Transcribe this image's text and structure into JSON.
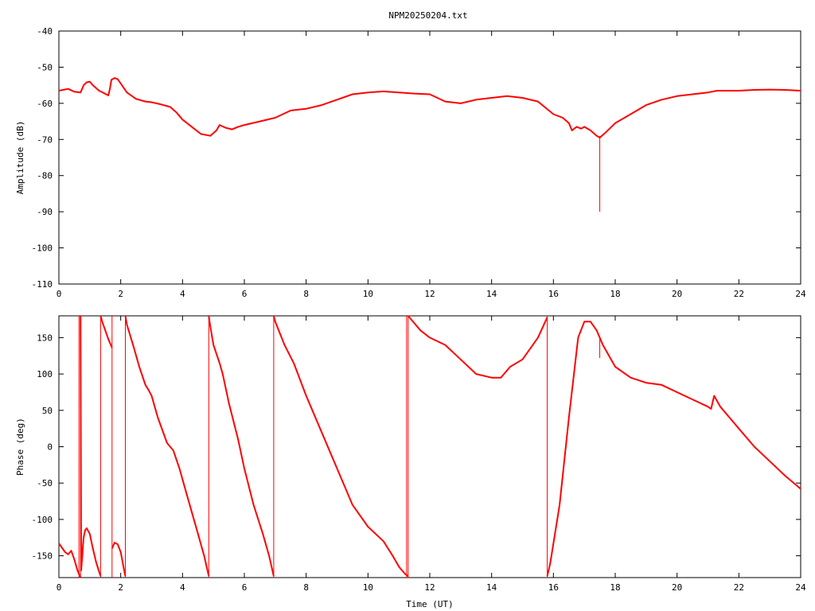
{
  "title": "NPM20250204.txt",
  "chart_data": [
    {
      "type": "line",
      "ylabel": "Amplitude (dB)",
      "xlabel": "",
      "xlim": [
        0,
        24
      ],
      "ylim": [
        -110,
        -40
      ],
      "xticks": [
        0,
        2,
        4,
        6,
        8,
        10,
        12,
        14,
        16,
        18,
        20,
        22,
        24
      ],
      "xtick_labels": [
        "0",
        "2",
        "4",
        "6",
        "8",
        "10",
        "12",
        "14",
        "16",
        "18",
        "20",
        "22",
        "24"
      ],
      "yticks": [
        -110,
        -100,
        -90,
        -80,
        -70,
        -60,
        -50,
        -40
      ],
      "ytick_labels": [
        "-110",
        "-100",
        "-90",
        "-80",
        "-70",
        "-60",
        "-50",
        "-40"
      ],
      "color": "#ff0000",
      "series": [
        {
          "x": [
            0,
            0.3,
            0.5,
            0.7,
            0.8,
            0.9,
            1.0,
            1.1,
            1.3,
            1.6,
            1.65,
            1.7,
            1.8,
            1.9,
            2.0,
            2.2,
            2.5,
            2.8,
            3.0,
            3.3,
            3.6,
            3.8,
            4.0,
            4.3,
            4.6,
            4.9,
            5.1,
            5.2,
            5.4,
            5.6,
            5.8,
            6.0,
            6.5,
            7.0,
            7.5,
            8.0,
            8.5,
            9.0,
            9.5,
            10.0,
            10.5,
            11.0,
            11.5,
            12.0,
            12.5,
            13.0,
            13.5,
            14.0,
            14.5,
            15.0,
            15.5,
            16.0,
            16.3,
            16.5,
            16.6,
            16.75,
            16.9,
            17.0,
            17.2,
            17.4,
            17.5,
            17.7,
            18.0,
            18.5,
            19.0,
            19.5,
            20.0,
            20.5,
            21.0,
            21.3,
            21.5,
            22.0,
            22.5,
            23.0,
            23.5,
            24.0
          ],
          "y": [
            -56.5,
            -56.0,
            -56.8,
            -57.0,
            -55.0,
            -54.2,
            -54.0,
            -55.0,
            -56.5,
            -57.8,
            -56.0,
            -53.5,
            -53.0,
            -53.3,
            -54.5,
            -57.0,
            -58.8,
            -59.5,
            -59.7,
            -60.3,
            -61.0,
            -62.5,
            -64.5,
            -66.5,
            -68.5,
            -69.0,
            -67.5,
            -66.0,
            -66.8,
            -67.2,
            -66.5,
            -66.0,
            -65.0,
            -64.0,
            -62.0,
            -61.5,
            -60.5,
            -59.0,
            -57.5,
            -57.0,
            -56.7,
            -57.0,
            -57.3,
            -57.5,
            -59.5,
            -60.0,
            -59.0,
            -58.5,
            -58.0,
            -58.5,
            -59.5,
            -63.0,
            -64.0,
            -65.5,
            -67.5,
            -66.5,
            -67.0,
            -66.5,
            -67.5,
            -69.0,
            -69.5,
            -68.0,
            -65.5,
            -63.0,
            -60.5,
            -59.0,
            -58.0,
            -57.5,
            -57.0,
            -56.5,
            -56.5,
            -56.5,
            -56.3,
            -56.2,
            -56.3,
            -56.5
          ]
        }
      ],
      "spikes": [
        {
          "x": 17.5,
          "y_from": -69.0,
          "y_to": -90.0
        }
      ]
    },
    {
      "type": "line",
      "ylabel": "Phase (deg)",
      "xlabel": "Time (UT)",
      "xlim": [
        0,
        24
      ],
      "ylim": [
        -180,
        180
      ],
      "xticks": [
        0,
        2,
        4,
        6,
        8,
        10,
        12,
        14,
        16,
        18,
        20,
        22,
        24
      ],
      "xtick_labels": [
        "0",
        "2",
        "4",
        "6",
        "8",
        "10",
        "12",
        "14",
        "16",
        "18",
        "20",
        "22",
        "24"
      ],
      "yticks": [
        -150,
        -100,
        -50,
        0,
        50,
        100,
        150
      ],
      "ytick_labels": [
        "-150",
        "-100",
        "-50",
        "0",
        "50",
        "100",
        "150"
      ],
      "color": "#ff0000",
      "segments": [
        {
          "x": [
            0,
            0.2,
            0.3,
            0.4,
            0.5,
            0.6,
            0.65,
            0.7
          ],
          "y": [
            -133,
            -145,
            -148,
            -143,
            -155,
            -170,
            -175,
            -180
          ]
        },
        {
          "x": [
            0.7,
            0.72,
            0.74,
            0.76,
            0.78,
            0.8,
            0.85,
            0.9,
            1.0,
            1.1,
            1.2,
            1.3,
            1.35
          ],
          "y": [
            180,
            -170,
            -160,
            -150,
            -135,
            -125,
            -115,
            -112,
            -120,
            -140,
            -158,
            -172,
            -178
          ]
        },
        {
          "x": [
            1.35,
            1.4,
            1.5,
            1.6,
            1.7,
            1.72
          ],
          "y": [
            180,
            172,
            160,
            148,
            138,
            136
          ]
        },
        {
          "x": [
            1.72,
            1.8,
            1.9,
            2.0,
            2.1,
            2.15
          ],
          "y": [
            -140,
            -132,
            -134,
            -145,
            -168,
            -178
          ]
        },
        {
          "x": [
            2.15,
            2.2,
            2.4,
            2.6,
            2.8,
            2.9,
            3.0,
            3.2,
            3.5,
            3.6,
            3.7,
            3.9,
            4.1,
            4.3,
            4.5,
            4.7,
            4.85
          ],
          "y": [
            180,
            168,
            140,
            110,
            85,
            78,
            70,
            40,
            5,
            0,
            -5,
            -30,
            -60,
            -90,
            -120,
            -150,
            -178
          ]
        },
        {
          "x": [
            4.85,
            4.9,
            5.0,
            5.2,
            5.3,
            5.5,
            5.8,
            6.0,
            6.3,
            6.6,
            6.8,
            6.95
          ],
          "y": [
            180,
            165,
            140,
            115,
            100,
            60,
            10,
            -30,
            -80,
            -120,
            -150,
            -178
          ]
        },
        {
          "x": [
            6.95,
            7.0,
            7.3,
            7.6,
            8.0,
            8.5,
            9.0,
            9.5,
            10.0,
            10.5,
            10.8,
            11.0,
            11.2,
            11.3
          ],
          "y": [
            180,
            172,
            140,
            115,
            70,
            20,
            -30,
            -80,
            -110,
            -130,
            -150,
            -165,
            -175,
            -178
          ]
        },
        {
          "x": [
            11.3,
            11.4,
            11.7,
            12.0,
            12.5,
            13.0,
            13.5,
            14.0,
            14.3,
            14.6,
            15.0,
            15.5,
            15.8
          ],
          "y": [
            180,
            175,
            160,
            150,
            140,
            120,
            100,
            95,
            95,
            110,
            120,
            150,
            178
          ]
        },
        {
          "x": [
            15.8,
            15.9,
            16.2,
            16.5,
            16.8,
            17.0,
            17.2,
            17.4,
            17.6,
            18.0,
            18.5,
            19.0,
            19.5,
            20.0,
            20.5,
            21.0,
            21.1,
            21.2,
            21.4,
            22.0,
            22.5,
            23.0,
            23.5,
            24.0
          ],
          "y": [
            -178,
            -160,
            -80,
            40,
            150,
            172,
            172,
            160,
            140,
            110,
            95,
            88,
            85,
            75,
            65,
            55,
            52,
            70,
            55,
            25,
            0,
            -20,
            -40,
            -58
          ]
        }
      ],
      "spikes": [
        {
          "x": 0.65,
          "y_from": -180,
          "y_to": 180
        },
        {
          "x": 0.7,
          "y_from": -180,
          "y_to": 180
        },
        {
          "x": 1.35,
          "y_from": -180,
          "y_to": 180
        },
        {
          "x": 1.72,
          "y_from": -180,
          "y_to": 180
        },
        {
          "x": 2.15,
          "y_from": -180,
          "y_to": 180
        },
        {
          "x": 4.85,
          "y_from": -180,
          "y_to": 180
        },
        {
          "x": 6.95,
          "y_from": -180,
          "y_to": 180
        },
        {
          "x": 11.25,
          "y_from": -180,
          "y_to": 180
        },
        {
          "x": 11.3,
          "y_from": -180,
          "y_to": 180
        },
        {
          "x": 15.8,
          "y_from": -180,
          "y_to": 180
        },
        {
          "x": 17.5,
          "y_from": 150,
          "y_to": 122
        }
      ]
    }
  ]
}
